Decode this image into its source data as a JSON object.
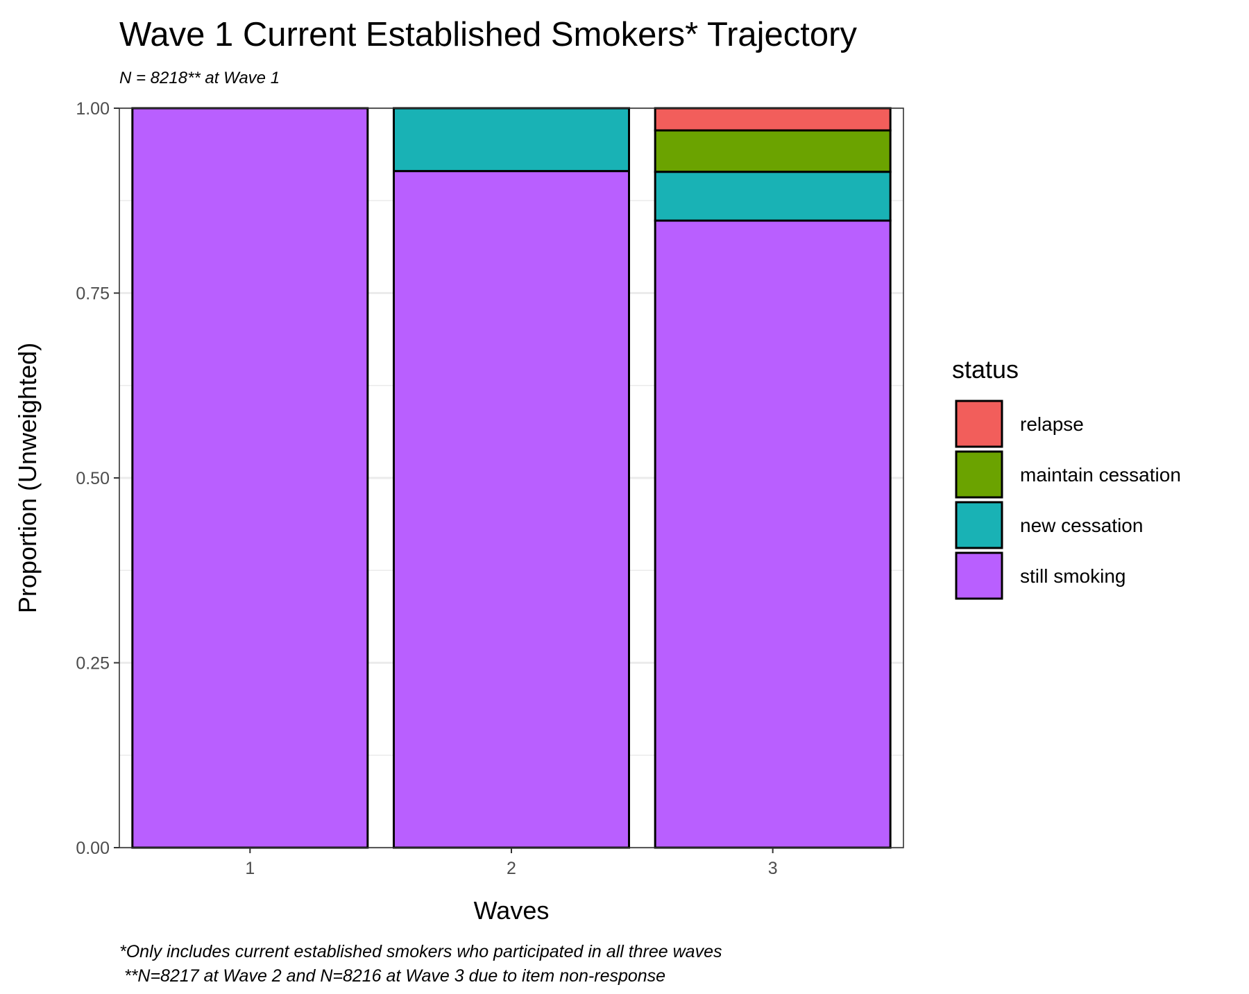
{
  "chart_data": {
    "type": "bar",
    "stacked": true,
    "title": "Wave 1 Current Established Smokers* Trajectory",
    "subtitle": "N = 8218** at Wave 1",
    "xlabel": "Waves",
    "ylabel": "Proportion (Unweighted)",
    "categories": [
      "1",
      "2",
      "3"
    ],
    "ylim": [
      0,
      1
    ],
    "yticks": [
      "0.00",
      "0.25",
      "0.50",
      "0.75",
      "1.00"
    ],
    "series": [
      {
        "name": "still smoking",
        "color": "#B95FFF",
        "values": [
          1.0,
          0.915,
          0.848
        ]
      },
      {
        "name": "new cessation",
        "color": "#19B2B5",
        "values": [
          0.0,
          0.085,
          0.066
        ]
      },
      {
        "name": "maintain cessation",
        "color": "#6BA300",
        "values": [
          0.0,
          0.0,
          0.056
        ]
      },
      {
        "name": "relapse",
        "color": "#F25E5B",
        "values": [
          0.0,
          0.0,
          0.03
        ]
      }
    ],
    "legend": {
      "title": "status",
      "position": "right",
      "order": [
        "relapse",
        "maintain cessation",
        "new cessation",
        "still smoking"
      ]
    },
    "grid": true,
    "caption": [
      "*Only includes current established smokers who participated in all three waves",
      " **N=8217 at Wave 2 and N=8216 at Wave 3 due to item non-response"
    ]
  }
}
